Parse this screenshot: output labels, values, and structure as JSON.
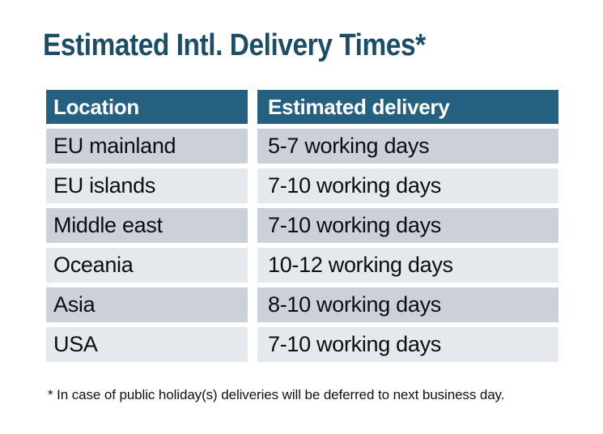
{
  "title": "Estimated Intl. Delivery Times*",
  "table": {
    "columns": [
      "Location",
      "Estimated delivery"
    ],
    "rows": [
      {
        "location": "EU mainland",
        "delivery": "5-7 working days"
      },
      {
        "location": "EU islands",
        "delivery": "7-10 working days"
      },
      {
        "location": "Middle east",
        "delivery": "7-10 working days"
      },
      {
        "location": "Oceania",
        "delivery": "10-12 working days"
      },
      {
        "location": "Asia",
        "delivery": "8-10 working days"
      },
      {
        "location": "USA",
        "delivery": "7-10 working days"
      }
    ]
  },
  "footnote": "* In case of public holiday(s) deliveries will be deferred to next business day.",
  "colors": {
    "title": "#1b4d66",
    "header_bg": "#266080",
    "header_text": "#ffffff",
    "row_alt_dark": "#ccd1d9",
    "row_alt_light": "#e5e8ec",
    "cell_text": "#0d0d0d",
    "footnote_text": "#111111"
  }
}
